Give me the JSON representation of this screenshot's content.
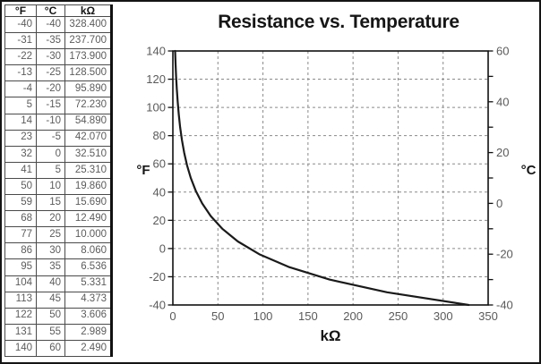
{
  "table": {
    "headers": [
      "°F",
      "°C",
      "kΩ"
    ],
    "rows": [
      [
        "-40",
        "-40",
        "328.400"
      ],
      [
        "-31",
        "-35",
        "237.700"
      ],
      [
        "-22",
        "-30",
        "173.900"
      ],
      [
        "-13",
        "-25",
        "128.500"
      ],
      [
        "-4",
        "-20",
        "95.890"
      ],
      [
        "5",
        "-15",
        "72.230"
      ],
      [
        "14",
        "-10",
        "54.890"
      ],
      [
        "23",
        "-5",
        "42.070"
      ],
      [
        "32",
        "0",
        "32.510"
      ],
      [
        "41",
        "5",
        "25.310"
      ],
      [
        "50",
        "10",
        "19.860"
      ],
      [
        "59",
        "15",
        "15.690"
      ],
      [
        "68",
        "20",
        "12.490"
      ],
      [
        "77",
        "25",
        "10.000"
      ],
      [
        "86",
        "30",
        "8.060"
      ],
      [
        "95",
        "35",
        "6.536"
      ],
      [
        "104",
        "40",
        "5.331"
      ],
      [
        "113",
        "45",
        "4.373"
      ],
      [
        "122",
        "50",
        "3.606"
      ],
      [
        "131",
        "55",
        "2.989"
      ],
      [
        "140",
        "60",
        "2.490"
      ]
    ]
  },
  "chart_data": {
    "type": "line",
    "title": "Resistance vs. Temperature",
    "xlabel": "kΩ",
    "ylabel_left": "°F",
    "ylabel_right": "°C",
    "xlim": [
      0,
      350
    ],
    "ylim_left": [
      -40,
      140
    ],
    "ylim_right": [
      -40,
      60
    ],
    "x_ticks": [
      0,
      50,
      100,
      150,
      200,
      250,
      300,
      350
    ],
    "y_left_ticks": [
      -40,
      -20,
      0,
      20,
      40,
      60,
      80,
      100,
      120,
      140
    ],
    "y_right_ticks_labeled": [
      -40,
      -20,
      0,
      20,
      40,
      60
    ],
    "y_right_ticks_minor": [
      -30,
      -10,
      10,
      30,
      50
    ],
    "grid": true,
    "legend": false,
    "colors": {
      "curve": "#1a1a1a",
      "grid": "#8a8a8a",
      "axis": "#111111",
      "tick_text": "#5a5a5a"
    },
    "series": [
      {
        "name": "resistance-vs-temperature",
        "points_kohm_degF": [
          [
            2.49,
            140
          ],
          [
            2.989,
            131
          ],
          [
            3.606,
            122
          ],
          [
            4.373,
            113
          ],
          [
            5.331,
            104
          ],
          [
            6.536,
            95
          ],
          [
            8.06,
            86
          ],
          [
            10.0,
            77
          ],
          [
            12.49,
            68
          ],
          [
            15.69,
            59
          ],
          [
            19.86,
            50
          ],
          [
            25.31,
            41
          ],
          [
            32.51,
            32
          ],
          [
            42.07,
            23
          ],
          [
            54.89,
            14
          ],
          [
            72.23,
            5
          ],
          [
            95.89,
            -4
          ],
          [
            128.5,
            -13
          ],
          [
            173.9,
            -22
          ],
          [
            237.7,
            -31
          ],
          [
            328.4,
            -40
          ]
        ]
      }
    ]
  }
}
